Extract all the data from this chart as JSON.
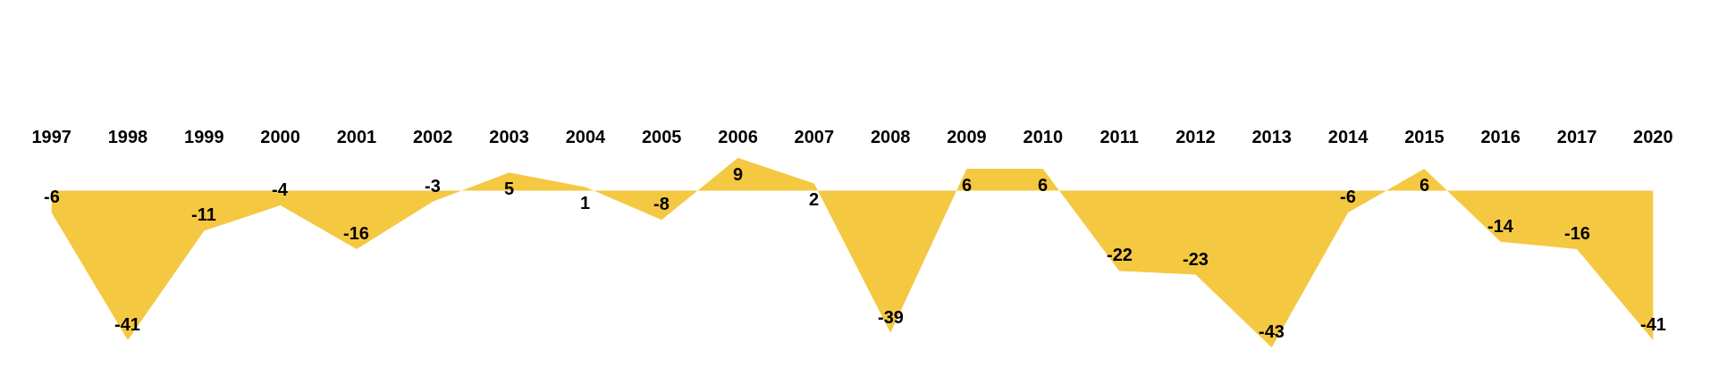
{
  "chart_data": {
    "type": "area",
    "categories": [
      "1997",
      "1998",
      "1999",
      "2000",
      "2001",
      "2002",
      "2003",
      "2004",
      "2005",
      "2006",
      "2007",
      "2008",
      "2009",
      "2010",
      "2011",
      "2012",
      "2013",
      "2014",
      "2015",
      "2016",
      "2017",
      "2020"
    ],
    "series": [
      {
        "color": "#f5c842",
        "values": [
          -6,
          -41,
          -11,
          -4,
          -16,
          -3,
          5,
          1,
          -8,
          9,
          2,
          -39,
          6,
          6,
          -22,
          -23,
          -43,
          -6,
          6,
          -14,
          -16,
          -41
        ],
        "value_labels": [
          "-6",
          "-41",
          "-11",
          "-4",
          "-16",
          "-3",
          "5",
          "1",
          "-8",
          "9",
          "2",
          "-39",
          "6",
          "6",
          "-22",
          "-23",
          "-43",
          "-6",
          "6",
          "-14",
          "-16",
          "-41"
        ]
      }
    ],
    "tick_labels": "x"
  }
}
